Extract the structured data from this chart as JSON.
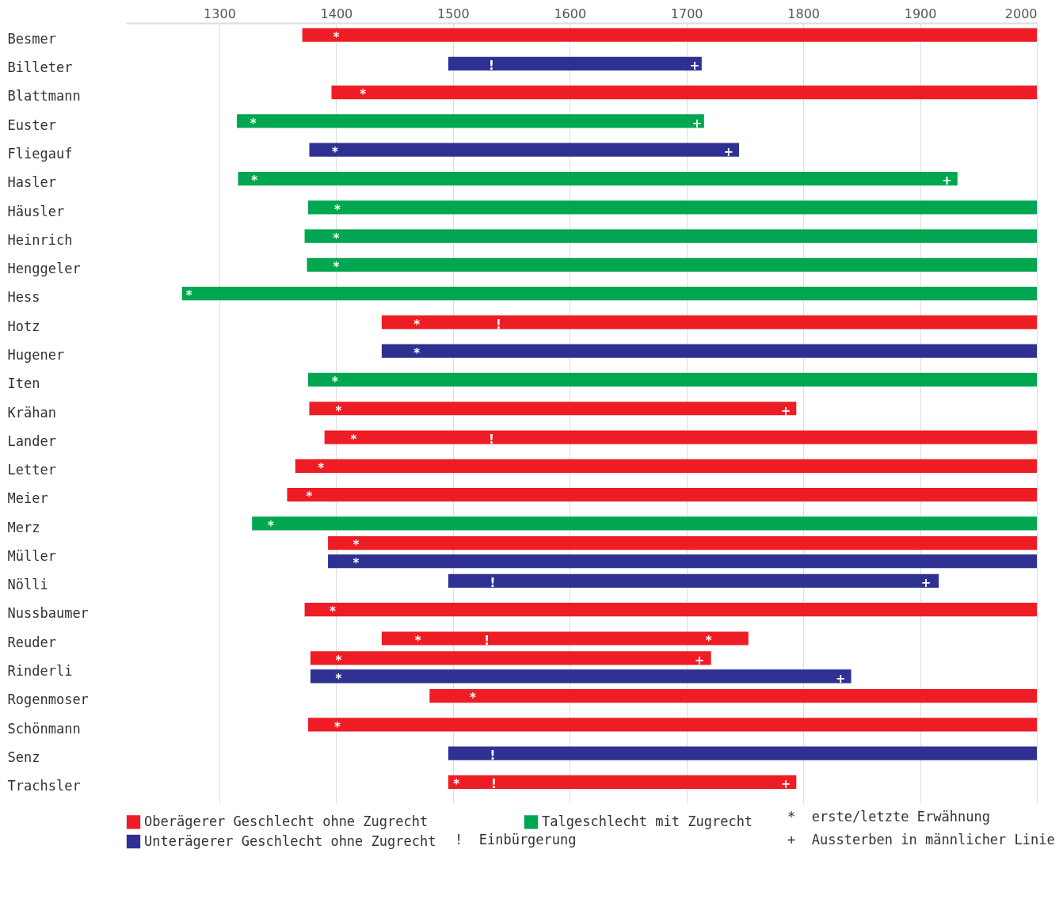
{
  "chart_data": {
    "type": "bar",
    "orientation": "horizontal",
    "categories": [
      "Besmer",
      "Billeter",
      "Blattmann",
      "Euster",
      "Fliegauf",
      "Hasler",
      "Häusler",
      "Heinrich",
      "Henggeler",
      "Hess",
      "Hotz",
      "Hugener",
      "Iten",
      "Krähan",
      "Lander",
      "Letter",
      "Meier",
      "Merz",
      "Müller",
      "Nölli",
      "Nussbaumer",
      "Reuder",
      "Rinderli",
      "Rogenmoser",
      "Schönmann",
      "Senz",
      "Trachsler"
    ],
    "series": [
      {
        "name": "Oberägerer Geschlecht ohne Zugrecht",
        "color": "#ee1c25",
        "base": [
          1371,
          null,
          1396,
          null,
          null,
          null,
          null,
          null,
          null,
          null,
          1439,
          null,
          null,
          1377,
          1390,
          1365,
          1358,
          null,
          1393,
          null,
          1373,
          1439,
          1378,
          1480,
          1376,
          null,
          1496
        ],
        "values": [
          629,
          null,
          604,
          null,
          null,
          null,
          null,
          null,
          null,
          null,
          561,
          null,
          null,
          417,
          610,
          635,
          642,
          null,
          607,
          null,
          627,
          314,
          343,
          520,
          624,
          null,
          298
        ]
      },
      {
        "name": "Talgeschlecht mit Zugrecht",
        "color": "#00a650",
        "base": [
          null,
          null,
          null,
          1315,
          null,
          1316,
          1376,
          1373,
          1375,
          1268,
          null,
          null,
          1376,
          null,
          null,
          null,
          null,
          1328,
          null,
          null,
          null,
          null,
          null,
          null,
          null,
          null,
          null
        ],
        "values": [
          null,
          null,
          null,
          400,
          null,
          616,
          624,
          627,
          625,
          732,
          null,
          null,
          624,
          null,
          null,
          null,
          null,
          672,
          null,
          null,
          null,
          null,
          null,
          null,
          null,
          null,
          null
        ]
      },
      {
        "name": "Unterägerer Geschlecht ohne Zugrecht",
        "color": "#2e3192",
        "base": [
          null,
          1496,
          null,
          null,
          1377,
          null,
          null,
          null,
          null,
          null,
          null,
          1439,
          null,
          null,
          null,
          null,
          null,
          null,
          1393,
          1496,
          null,
          null,
          1378,
          null,
          null,
          1496,
          null
        ],
        "values": [
          null,
          217,
          null,
          null,
          368,
          null,
          null,
          null,
          null,
          null,
          null,
          561,
          null,
          null,
          null,
          null,
          null,
          null,
          607,
          420,
          null,
          null,
          463,
          null,
          null,
          504,
          null
        ]
      }
    ],
    "xlim": [
      1220,
      2000
    ],
    "xticks": [
      1300,
      1400,
      1500,
      1600,
      1700,
      1800,
      1900,
      2000
    ],
    "grid": "x",
    "legend": "bottom",
    "annotations": [
      {
        "text": "*",
        "x": 1400,
        "y": "Besmer"
      },
      {
        "text": "!",
        "x": 1533,
        "y": "Billeter"
      },
      {
        "text": "+",
        "x": 1707,
        "y": "Billeter"
      },
      {
        "text": "*",
        "x": 1423,
        "y": "Blattmann"
      },
      {
        "text": "*",
        "x": 1329,
        "y": "Euster"
      },
      {
        "text": "+",
        "x": 1709,
        "y": "Euster"
      },
      {
        "text": "*",
        "x": 1399,
        "y": "Fliegauf"
      },
      {
        "text": "+",
        "x": 1736,
        "y": "Fliegauf"
      },
      {
        "text": "*",
        "x": 1330,
        "y": "Hasler"
      },
      {
        "text": "+",
        "x": 1923,
        "y": "Hasler"
      },
      {
        "text": "*",
        "x": 1401,
        "y": "Häusler"
      },
      {
        "text": "*",
        "x": 1400,
        "y": "Heinrich"
      },
      {
        "text": "*",
        "x": 1400,
        "y": "Henggeler"
      },
      {
        "text": "*",
        "x": 1274,
        "y": "Hess"
      },
      {
        "text": "*",
        "x": 1469,
        "y": "Hotz"
      },
      {
        "text": "!",
        "x": 1539,
        "y": "Hotz"
      },
      {
        "text": "*",
        "x": 1469,
        "y": "Hugener"
      },
      {
        "text": "*",
        "x": 1399,
        "y": "Iten"
      },
      {
        "text": "*",
        "x": 1402,
        "y": "Krähan"
      },
      {
        "text": "+",
        "x": 1785,
        "y": "Krähan"
      },
      {
        "text": "*",
        "x": 1415,
        "y": "Lander"
      },
      {
        "text": "!",
        "x": 1533,
        "y": "Lander"
      },
      {
        "text": "*",
        "x": 1387,
        "y": "Letter"
      },
      {
        "text": "*",
        "x": 1377,
        "y": "Meier"
      },
      {
        "text": "*",
        "x": 1344,
        "y": "Merz"
      },
      {
        "text": "*",
        "x": 1417,
        "y": "Müller"
      },
      {
        "text": "*",
        "x": 1417,
        "y": "Müller"
      },
      {
        "text": "!",
        "x": 1534,
        "y": "Nölli"
      },
      {
        "text": "+",
        "x": 1905,
        "y": "Nölli"
      },
      {
        "text": "*",
        "x": 1397,
        "y": "Nussbaumer"
      },
      {
        "text": "*",
        "x": 1470,
        "y": "Reuder"
      },
      {
        "text": "!",
        "x": 1529,
        "y": "Reuder"
      },
      {
        "text": "*",
        "x": 1719,
        "y": "Reuder"
      },
      {
        "text": "*",
        "x": 1402,
        "y": "Rinderli"
      },
      {
        "text": "*",
        "x": 1402,
        "y": "Rinderli"
      },
      {
        "text": "+",
        "x": 1711,
        "y": "Rinderli"
      },
      {
        "text": "+",
        "x": 1832,
        "y": "Rinderli"
      },
      {
        "text": "*",
        "x": 1517,
        "y": "Rogenmoser"
      },
      {
        "text": "*",
        "x": 1401,
        "y": "Schönmann"
      },
      {
        "text": "!",
        "x": 1534,
        "y": "Senz"
      },
      {
        "text": "*",
        "x": 1503,
        "y": "Trachsler"
      },
      {
        "text": "!",
        "x": 1535,
        "y": "Trachsler"
      },
      {
        "text": "+",
        "x": 1785,
        "y": "Trachsler"
      },
      "*  erste/letzte Erwähnung",
      "!  Einbürgerung",
      "+  Aussterben in männlicher Linie"
    ]
  }
}
